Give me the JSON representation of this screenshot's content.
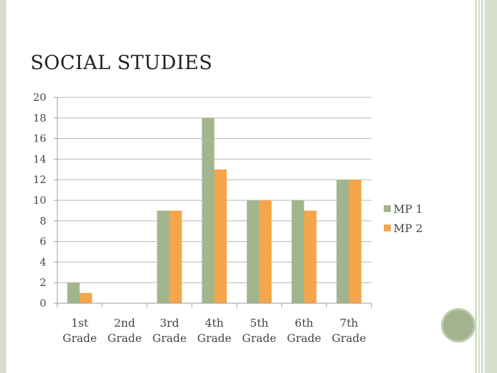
{
  "slide": {
    "title": "SOCIAL STUDIES"
  },
  "chart_data": {
    "type": "bar",
    "title": "SOCIAL STUDIES",
    "categories": [
      [
        "1st",
        "Grade"
      ],
      [
        "2nd",
        "Grade"
      ],
      [
        "3rd",
        "Grade"
      ],
      [
        "4th",
        "Grade"
      ],
      [
        "5th",
        "Grade"
      ],
      [
        "6th",
        "Grade"
      ],
      [
        "7th",
        "Grade"
      ]
    ],
    "series": [
      {
        "name": "MP 1",
        "color": "#a3b58d",
        "values": [
          2,
          0,
          9,
          18,
          10,
          10,
          12
        ]
      },
      {
        "name": "MP 2",
        "color": "#f5a54a",
        "values": [
          1,
          0,
          9,
          13,
          10,
          9,
          12
        ]
      }
    ],
    "ylim": [
      0,
      20
    ],
    "yticks": [
      0,
      2,
      4,
      6,
      8,
      10,
      12,
      14,
      16,
      18,
      20
    ],
    "grid": true,
    "legend": "right",
    "xlabel": "",
    "ylabel": ""
  }
}
